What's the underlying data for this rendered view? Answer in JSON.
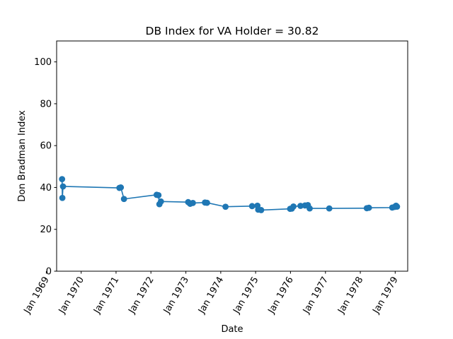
{
  "chart_data": {
    "type": "line",
    "title": "DB Index for VA Holder = 30.82",
    "xlabel": "Date",
    "ylabel": "Don Bradman Index",
    "ylim": [
      0,
      110
    ],
    "yticks": [
      0,
      20,
      40,
      60,
      80,
      100
    ],
    "xlim": [
      "1969-04-19",
      "1979-05-12"
    ],
    "xticks": [
      {
        "date": "1969-01-01",
        "label": "Jan 1969"
      },
      {
        "date": "1970-01-01",
        "label": "Jan 1970"
      },
      {
        "date": "1971-01-01",
        "label": "Jan 1971"
      },
      {
        "date": "1972-01-01",
        "label": "Jan 1972"
      },
      {
        "date": "1973-01-01",
        "label": "Jan 1973"
      },
      {
        "date": "1974-01-01",
        "label": "Jan 1974"
      },
      {
        "date": "1975-01-01",
        "label": "Jan 1975"
      },
      {
        "date": "1976-01-01",
        "label": "Jan 1976"
      },
      {
        "date": "1977-01-01",
        "label": "Jan 1977"
      },
      {
        "date": "1978-01-01",
        "label": "Jan 1978"
      },
      {
        "date": "1979-01-01",
        "label": "Jan 1979"
      }
    ],
    "grid": false,
    "legend": "none",
    "series": [
      {
        "color": "#1f77b4",
        "points": [
          {
            "x": "1969-06-15",
            "y": 44.0
          },
          {
            "x": "1969-06-18",
            "y": 35.0
          },
          {
            "x": "1969-06-25",
            "y": 40.5
          },
          {
            "x": "1971-02-05",
            "y": 39.8
          },
          {
            "x": "1971-02-20",
            "y": 40.0
          },
          {
            "x": "1971-03-25",
            "y": 34.5
          },
          {
            "x": "1972-03-01",
            "y": 36.5
          },
          {
            "x": "1972-03-20",
            "y": 36.3
          },
          {
            "x": "1972-03-30",
            "y": 32.0
          },
          {
            "x": "1972-04-15",
            "y": 33.3
          },
          {
            "x": "1973-01-25",
            "y": 33.0
          },
          {
            "x": "1973-02-15",
            "y": 32.2
          },
          {
            "x": "1973-03-15",
            "y": 32.6
          },
          {
            "x": "1973-07-20",
            "y": 32.8
          },
          {
            "x": "1973-08-10",
            "y": 32.7
          },
          {
            "x": "1974-02-20",
            "y": 30.8
          },
          {
            "x": "1974-11-25",
            "y": 31.1
          },
          {
            "x": "1975-01-20",
            "y": 31.3
          },
          {
            "x": "1975-01-28",
            "y": 29.4
          },
          {
            "x": "1975-02-28",
            "y": 29.2
          },
          {
            "x": "1975-12-28",
            "y": 29.8
          },
          {
            "x": "1976-01-15",
            "y": 29.9
          },
          {
            "x": "1976-02-01",
            "y": 30.9
          },
          {
            "x": "1976-04-15",
            "y": 31.2
          },
          {
            "x": "1976-06-01",
            "y": 31.4
          },
          {
            "x": "1976-07-01",
            "y": 31.6
          },
          {
            "x": "1976-07-20",
            "y": 30.0
          },
          {
            "x": "1977-02-10",
            "y": 30.0
          },
          {
            "x": "1978-03-10",
            "y": 30.1
          },
          {
            "x": "1978-04-01",
            "y": 30.3
          },
          {
            "x": "1978-12-01",
            "y": 30.4
          },
          {
            "x": "1978-12-25",
            "y": 30.7
          },
          {
            "x": "1979-01-10",
            "y": 31.3
          },
          {
            "x": "1979-01-20",
            "y": 30.82
          }
        ]
      }
    ]
  }
}
